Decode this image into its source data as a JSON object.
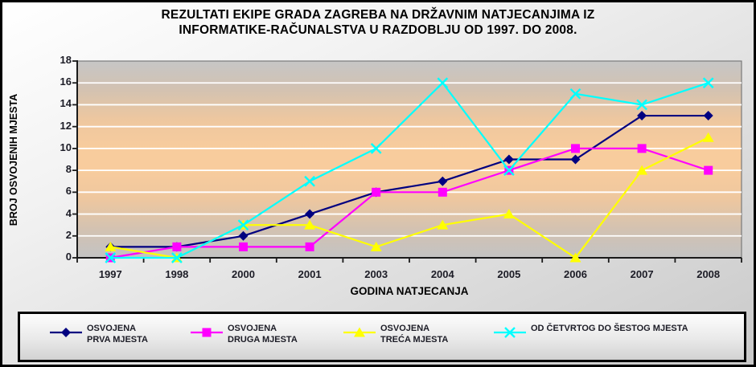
{
  "title": {
    "line1": "REZULTATI EKIPE GRADA ZAGREBA NA DRŽAVNIM NATJECANJIMA IZ",
    "line2": "INFORMATIKE-RAČUNALSTVA U RAZDOBLJU OD 1997. DO 2008."
  },
  "chart_data": {
    "type": "line",
    "categories": [
      "1997",
      "1998",
      "2000",
      "2001",
      "2003",
      "2004",
      "2005",
      "2006",
      "2007",
      "2008"
    ],
    "series": [
      {
        "name": "OSVOJENA PRVA MJESTA",
        "legend_lines": [
          "OSVOJENA",
          "PRVA MJESTA"
        ],
        "color": "#000080",
        "marker": "diamond",
        "values": [
          1,
          1,
          2,
          4,
          6,
          7,
          9,
          9,
          13,
          13
        ]
      },
      {
        "name": "OSVOJENA DRUGA MJESTA",
        "legend_lines": [
          "OSVOJENA",
          "DRUGA MJESTA"
        ],
        "color": "#ff00ff",
        "marker": "square",
        "values": [
          0,
          1,
          1,
          1,
          6,
          6,
          8,
          10,
          10,
          8
        ]
      },
      {
        "name": "OSVOJENA TREĆA MJESTA",
        "legend_lines": [
          "OSVOJENA",
          "TREĆA MJESTA"
        ],
        "color": "#ffff00",
        "marker": "triangle",
        "values": [
          1,
          0,
          3,
          3,
          1,
          3,
          4,
          0,
          8,
          11
        ]
      },
      {
        "name": "OD ČETVRTOG DO ŠESTOG MJESTA",
        "legend_lines": [
          "OD ČETVRTOG DO ŠESTOG MJESTA"
        ],
        "color": "#00ffff",
        "marker": "x",
        "values": [
          0,
          0,
          3,
          7,
          10,
          16,
          8,
          15,
          14,
          16
        ]
      }
    ],
    "xlabel": "GODINA NATJECANJA",
    "ylabel": "BROJ OSVOJENIH MJESTA",
    "ylim": [
      0,
      18
    ],
    "yticks": [
      0,
      2,
      4,
      6,
      8,
      10,
      12,
      14,
      16,
      18
    ],
    "grid": true,
    "legend_position": "bottom"
  },
  "colors": {
    "plot_gray_edge": "#c6c6c6",
    "plot_orange_center": "#f8cc9d",
    "gridline": "#ffffff",
    "axis": "#1a1a1a",
    "text": "#1c1c26",
    "border": "#000000"
  }
}
